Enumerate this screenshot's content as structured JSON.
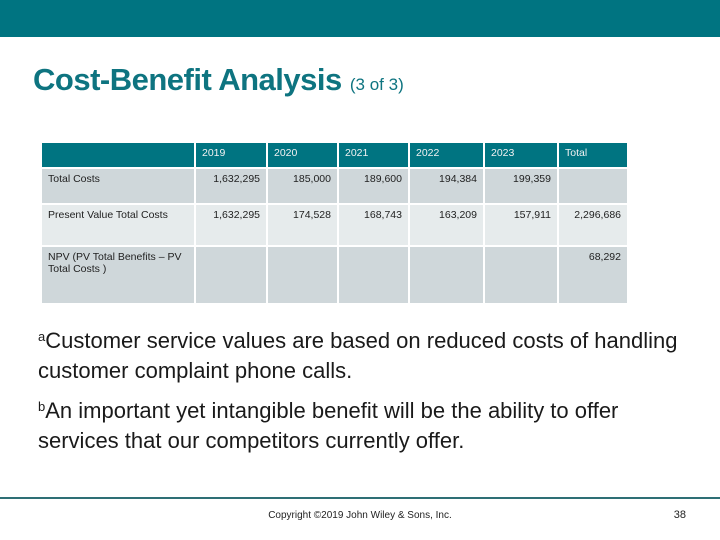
{
  "header": {
    "bar_color": "#007481",
    "title": "Cost-Benefit Analysis",
    "subtitle": "(3 of 3)"
  },
  "table": {
    "columns": [
      "",
      "2019",
      "2020",
      "2021",
      "2022",
      "2023",
      "Total"
    ],
    "rows": [
      {
        "label": "Total Costs",
        "values": [
          "1,632,295",
          "185,000",
          "189,600",
          "194,384",
          "199,359",
          ""
        ]
      },
      {
        "label": "Present Value Total Costs",
        "values": [
          "1,632,295",
          "174,528",
          "168,743",
          "163,209",
          "157,911",
          "2,296,686"
        ]
      },
      {
        "label": "NPV (PV Total Benefits – PV Total Costs )",
        "values": [
          "",
          "",
          "",
          "",
          "",
          "68,292"
        ]
      }
    ]
  },
  "notes": [
    {
      "marker": "a",
      "text": "Customer service values are based on reduced costs of handling customer complaint phone calls."
    },
    {
      "marker": "b",
      "text": "An important yet intangible benefit will be the ability to offer services that our competitors currently offer."
    }
  ],
  "footer": {
    "copyright": "Copyright ©2019 John Wiley & Sons, Inc.",
    "page_number": "38"
  }
}
